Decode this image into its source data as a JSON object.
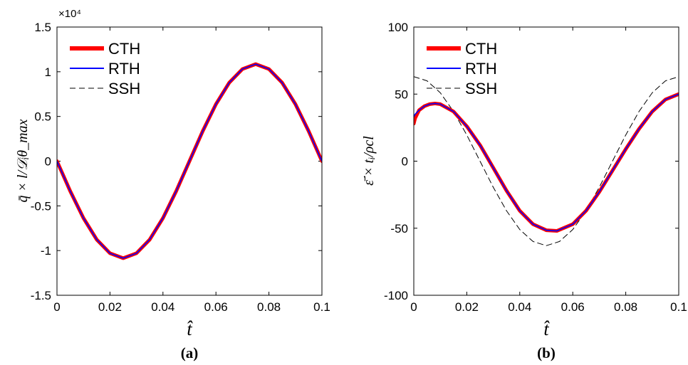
{
  "chart_data": [
    {
      "type": "line",
      "panel_label": "(a)",
      "xlabel": "t̂",
      "ylabel": "q̄ × l/𝒟ᵢθ_max",
      "axis_multiplier": "×10⁴",
      "xlim": [
        0,
        0.1
      ],
      "ylim": [
        -1.5,
        1.5
      ],
      "yscale_factor": 10000,
      "grid": false,
      "legend_position": "top-left",
      "xticks": [
        0,
        0.02,
        0.04,
        0.06,
        0.08,
        0.1
      ],
      "xtick_labels": [
        "0",
        "0.02",
        "0.04",
        "0.06",
        "0.08",
        "0.1"
      ],
      "yticks": [
        -1.5,
        -1,
        -0.5,
        0,
        0.5,
        1,
        1.5
      ],
      "ytick_labels": [
        "-1.5",
        "-1",
        "-0.5",
        "0",
        "0.5",
        "1",
        "1.5"
      ],
      "x": [
        0,
        0.005,
        0.01,
        0.015,
        0.02,
        0.025,
        0.03,
        0.035,
        0.04,
        0.045,
        0.05,
        0.055,
        0.06,
        0.065,
        0.07,
        0.075,
        0.08,
        0.085,
        0.09,
        0.095,
        0.1
      ],
      "series": [
        {
          "name": "CTH",
          "color": "#ff0000",
          "style": "thick-solid",
          "values": [
            0,
            -0.335,
            -0.637,
            -0.877,
            -1.03,
            -1.085,
            -1.03,
            -0.877,
            -0.637,
            -0.335,
            0,
            0.335,
            0.637,
            0.877,
            1.03,
            1.085,
            1.03,
            0.877,
            0.637,
            0.335,
            0
          ]
        },
        {
          "name": "RTH",
          "color": "#0000ff",
          "style": "solid",
          "values": [
            0,
            -0.335,
            -0.637,
            -0.877,
            -1.03,
            -1.085,
            -1.03,
            -0.877,
            -0.637,
            -0.335,
            0,
            0.335,
            0.637,
            0.877,
            1.03,
            1.085,
            1.03,
            0.877,
            0.637,
            0.335,
            0
          ]
        },
        {
          "name": "SSH",
          "color": "#000000",
          "style": "dashed",
          "values": [
            0,
            -0.335,
            -0.637,
            -0.877,
            -1.03,
            -1.085,
            -1.03,
            -0.877,
            -0.637,
            -0.335,
            0,
            0.335,
            0.637,
            0.877,
            1.03,
            1.085,
            1.03,
            0.877,
            0.637,
            0.335,
            0
          ]
        }
      ]
    },
    {
      "type": "line",
      "panel_label": "(b)",
      "xlabel": "t̂",
      "ylabel": "ε̄̇ × tᵢ/ρcl",
      "xlim": [
        0,
        0.1
      ],
      "ylim": [
        -100,
        100
      ],
      "grid": false,
      "legend_position": "top-left",
      "xticks": [
        0,
        0.02,
        0.04,
        0.06,
        0.08,
        0.1
      ],
      "xtick_labels": [
        "0",
        "0.02",
        "0.04",
        "0.06",
        "0.08",
        "0.1"
      ],
      "yticks": [
        -100,
        -50,
        0,
        50,
        100
      ],
      "ytick_labels": [
        "-100",
        "-50",
        "0",
        "50",
        "100"
      ],
      "series": [
        {
          "name": "CTH",
          "color": "#ff0000",
          "style": "thick-solid",
          "x": [
            0,
            0.0005,
            0.002,
            0.004,
            0.006,
            0.008,
            0.01,
            0.015,
            0.02,
            0.025,
            0.03,
            0.035,
            0.04,
            0.045,
            0.05,
            0.054,
            0.06,
            0.065,
            0.07,
            0.075,
            0.08,
            0.085,
            0.09,
            0.095,
            0.1
          ],
          "values": [
            28,
            32,
            38,
            41,
            42.5,
            43,
            42.5,
            37,
            26,
            12,
            -5,
            -22,
            -37,
            -47,
            -51.5,
            -52,
            -47,
            -37,
            -23,
            -7,
            9,
            24,
            37,
            46,
            50
          ]
        },
        {
          "name": "RTH",
          "color": "#0000ff",
          "style": "solid",
          "x": [
            0,
            0.0005,
            0.002,
            0.004,
            0.006,
            0.008,
            0.01,
            0.015,
            0.02,
            0.025,
            0.03,
            0.035,
            0.04,
            0.045,
            0.05,
            0.054,
            0.06,
            0.065,
            0.07,
            0.075,
            0.08,
            0.085,
            0.09,
            0.095,
            0.1
          ],
          "values": [
            33,
            35,
            38,
            41,
            42.5,
            43,
            42.5,
            37,
            26,
            12,
            -5,
            -22,
            -37,
            -47,
            -51.5,
            -52,
            -47,
            -37,
            -23,
            -7,
            9,
            24,
            37,
            46,
            50
          ]
        },
        {
          "name": "SSH",
          "color": "#000000",
          "style": "dashed",
          "x": [
            0,
            0.005,
            0.01,
            0.015,
            0.02,
            0.025,
            0.03,
            0.035,
            0.04,
            0.045,
            0.05,
            0.055,
            0.06,
            0.065,
            0.07,
            0.075,
            0.08,
            0.085,
            0.09,
            0.095,
            0.1
          ],
          "values": [
            63,
            59.9,
            51,
            37,
            19.5,
            0,
            -19.5,
            -37,
            -51,
            -59.9,
            -63,
            -59.9,
            -51,
            -37,
            -19.5,
            0,
            19.5,
            37,
            51,
            59.9,
            63
          ]
        }
      ]
    }
  ]
}
